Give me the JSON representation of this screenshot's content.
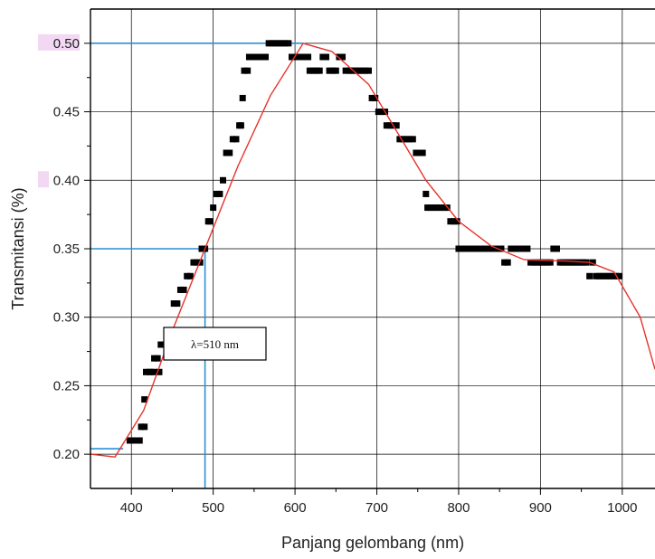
{
  "chart_data": {
    "type": "scatter",
    "title": "",
    "xlabel": "Panjang gelombang (nm)",
    "ylabel": "Transmitansi (%)",
    "xlim": [
      350,
      1040
    ],
    "ylim": [
      0.175,
      0.525
    ],
    "x_ticks": [
      400,
      500,
      600,
      700,
      800,
      900,
      1000
    ],
    "x_tick_labels": [
      "400",
      "500",
      "600",
      "700",
      "800",
      "900",
      "1000"
    ],
    "y_ticks": [
      0.2,
      0.25,
      0.3,
      0.35,
      0.4,
      0.45,
      0.5
    ],
    "y_tick_labels": [
      "0.20",
      "0.25",
      "0.30",
      "0.35",
      "0.40",
      "0.45",
      "0.50"
    ],
    "grid": true,
    "colors": {
      "measured": "#000000",
      "fit": "#e8322d",
      "reference": "#2c8fd4",
      "highlight_label_bg": "#f2d8f2"
    },
    "series": [
      {
        "type": "scatter",
        "points": [
          [
            398,
            0.21
          ],
          [
            402,
            0.21
          ],
          [
            406,
            0.21
          ],
          [
            410,
            0.21
          ],
          [
            412,
            0.22
          ],
          [
            416,
            0.22
          ],
          [
            416,
            0.24
          ],
          [
            418,
            0.26
          ],
          [
            422,
            0.26
          ],
          [
            424,
            0.26
          ],
          [
            428,
            0.26
          ],
          [
            428,
            0.27
          ],
          [
            432,
            0.27
          ],
          [
            434,
            0.26
          ],
          [
            436,
            0.28
          ],
          [
            440,
            0.28
          ],
          [
            444,
            0.28
          ],
          [
            452,
            0.31
          ],
          [
            456,
            0.31
          ],
          [
            460,
            0.32
          ],
          [
            464,
            0.32
          ],
          [
            468,
            0.33
          ],
          [
            472,
            0.33
          ],
          [
            476,
            0.34
          ],
          [
            480,
            0.34
          ],
          [
            484,
            0.34
          ],
          [
            486,
            0.35
          ],
          [
            490,
            0.35
          ],
          [
            494,
            0.37
          ],
          [
            496,
            0.37
          ],
          [
            500,
            0.38
          ],
          [
            504,
            0.39
          ],
          [
            508,
            0.39
          ],
          [
            512,
            0.4
          ],
          [
            516,
            0.42
          ],
          [
            520,
            0.42
          ],
          [
            524,
            0.43
          ],
          [
            528,
            0.43
          ],
          [
            532,
            0.44
          ],
          [
            534,
            0.44
          ],
          [
            536,
            0.46
          ],
          [
            538,
            0.48
          ],
          [
            542,
            0.48
          ],
          [
            544,
            0.49
          ],
          [
            548,
            0.49
          ],
          [
            552,
            0.49
          ],
          [
            556,
            0.49
          ],
          [
            560,
            0.49
          ],
          [
            564,
            0.49
          ],
          [
            568,
            0.5
          ],
          [
            572,
            0.5
          ],
          [
            576,
            0.5
          ],
          [
            580,
            0.5
          ],
          [
            584,
            0.5
          ],
          [
            588,
            0.5
          ],
          [
            592,
            0.5
          ],
          [
            596,
            0.49
          ],
          [
            600,
            0.49
          ],
          [
            604,
            0.49
          ],
          [
            608,
            0.49
          ],
          [
            612,
            0.49
          ],
          [
            616,
            0.49
          ],
          [
            618,
            0.48
          ],
          [
            622,
            0.48
          ],
          [
            626,
            0.48
          ],
          [
            630,
            0.48
          ],
          [
            634,
            0.49
          ],
          [
            638,
            0.49
          ],
          [
            642,
            0.48
          ],
          [
            646,
            0.48
          ],
          [
            650,
            0.48
          ],
          [
            654,
            0.49
          ],
          [
            658,
            0.49
          ],
          [
            662,
            0.48
          ],
          [
            666,
            0.48
          ],
          [
            670,
            0.48
          ],
          [
            674,
            0.48
          ],
          [
            678,
            0.48
          ],
          [
            682,
            0.48
          ],
          [
            686,
            0.48
          ],
          [
            690,
            0.48
          ],
          [
            694,
            0.46
          ],
          [
            698,
            0.46
          ],
          [
            702,
            0.45
          ],
          [
            706,
            0.45
          ],
          [
            710,
            0.45
          ],
          [
            712,
            0.44
          ],
          [
            716,
            0.44
          ],
          [
            720,
            0.44
          ],
          [
            724,
            0.44
          ],
          [
            728,
            0.43
          ],
          [
            732,
            0.43
          ],
          [
            736,
            0.43
          ],
          [
            740,
            0.43
          ],
          [
            744,
            0.43
          ],
          [
            748,
            0.42
          ],
          [
            752,
            0.42
          ],
          [
            756,
            0.42
          ],
          [
            760,
            0.39
          ],
          [
            762,
            0.38
          ],
          [
            766,
            0.38
          ],
          [
            770,
            0.38
          ],
          [
            774,
            0.38
          ],
          [
            778,
            0.38
          ],
          [
            782,
            0.38
          ],
          [
            786,
            0.38
          ],
          [
            790,
            0.37
          ],
          [
            794,
            0.37
          ],
          [
            798,
            0.37
          ],
          [
            800,
            0.35
          ],
          [
            804,
            0.35
          ],
          [
            808,
            0.35
          ],
          [
            812,
            0.35
          ],
          [
            816,
            0.35
          ],
          [
            820,
            0.35
          ],
          [
            824,
            0.35
          ],
          [
            828,
            0.35
          ],
          [
            832,
            0.35
          ],
          [
            836,
            0.35
          ],
          [
            840,
            0.35
          ],
          [
            844,
            0.35
          ],
          [
            848,
            0.35
          ],
          [
            852,
            0.35
          ],
          [
            856,
            0.34
          ],
          [
            860,
            0.34
          ],
          [
            864,
            0.35
          ],
          [
            868,
            0.35
          ],
          [
            872,
            0.35
          ],
          [
            876,
            0.35
          ],
          [
            880,
            0.35
          ],
          [
            884,
            0.35
          ],
          [
            888,
            0.34
          ],
          [
            892,
            0.34
          ],
          [
            896,
            0.34
          ],
          [
            900,
            0.34
          ],
          [
            904,
            0.34
          ],
          [
            908,
            0.34
          ],
          [
            912,
            0.34
          ],
          [
            916,
            0.35
          ],
          [
            920,
            0.35
          ],
          [
            924,
            0.34
          ],
          [
            928,
            0.34
          ],
          [
            932,
            0.34
          ],
          [
            936,
            0.34
          ],
          [
            940,
            0.34
          ],
          [
            944,
            0.34
          ],
          [
            948,
            0.34
          ],
          [
            952,
            0.34
          ],
          [
            956,
            0.34
          ],
          [
            960,
            0.33
          ],
          [
            964,
            0.34
          ],
          [
            968,
            0.33
          ],
          [
            972,
            0.33
          ],
          [
            976,
            0.33
          ],
          [
            980,
            0.33
          ],
          [
            984,
            0.33
          ],
          [
            988,
            0.33
          ],
          [
            992,
            0.33
          ],
          [
            996,
            0.33
          ]
        ]
      },
      {
        "type": "line",
        "points": [
          [
            350,
            0.2
          ],
          [
            380,
            0.198
          ],
          [
            415,
            0.232
          ],
          [
            450,
            0.29
          ],
          [
            490,
            0.35
          ],
          [
            530,
            0.41
          ],
          [
            570,
            0.462
          ],
          [
            610,
            0.5
          ],
          [
            645,
            0.494
          ],
          [
            690,
            0.47
          ],
          [
            730,
            0.43
          ],
          [
            760,
            0.4
          ],
          [
            800,
            0.37
          ],
          [
            840,
            0.352
          ],
          [
            880,
            0.342
          ],
          [
            930,
            0.341
          ],
          [
            960,
            0.34
          ],
          [
            990,
            0.333
          ],
          [
            1022,
            0.3
          ],
          [
            1040,
            0.262
          ]
        ]
      }
    ],
    "reference_lines": [
      {
        "y": 0.5,
        "x_from": 350,
        "x_to": 610
      },
      {
        "y": 0.35,
        "x_from": 350,
        "x_to": 490
      },
      {
        "y": 0.204,
        "x_from": 350,
        "x_to": 390
      },
      {
        "x": 490,
        "y_from": 0.175,
        "y_to": 0.35
      }
    ],
    "highlighted_tick_labels": [
      "0.50",
      "0.40"
    ],
    "annotations": [
      {
        "text": "λ=510 nm",
        "x": 440,
        "y": 0.29
      }
    ]
  }
}
